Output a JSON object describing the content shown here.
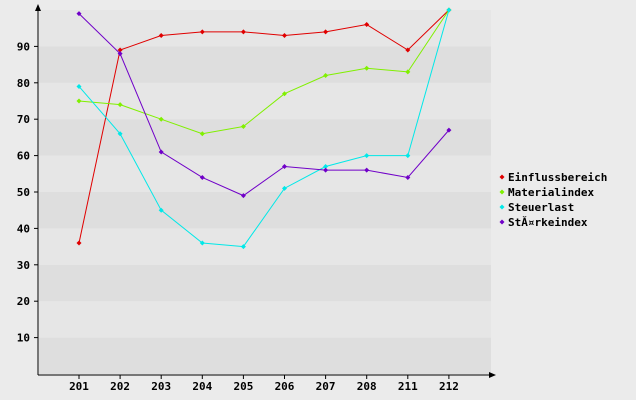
{
  "chart_data": {
    "type": "line",
    "title": "",
    "xlabel": "",
    "ylabel": "",
    "categories": [
      "201",
      "202",
      "203",
      "204",
      "205",
      "206",
      "207",
      "208",
      "211",
      "212"
    ],
    "ylim": [
      0,
      100
    ],
    "yticks": [
      10,
      20,
      30,
      40,
      50,
      60,
      70,
      80,
      90
    ],
    "grid": "horizontal alternating bands",
    "legend_position": "right",
    "series": [
      {
        "name": "Einflussbereich",
        "color": "#e00000",
        "values": [
          36,
          89,
          93,
          94,
          94,
          93,
          94,
          96,
          89,
          100
        ]
      },
      {
        "name": "Materialindex",
        "color": "#80f000",
        "values": [
          75,
          74,
          70,
          66,
          68,
          77,
          82,
          84,
          83,
          100
        ]
      },
      {
        "name": "Steuerlast",
        "color": "#00e8e8",
        "values": [
          79,
          66,
          45,
          36,
          35,
          51,
          57,
          60,
          60,
          100
        ]
      },
      {
        "name": "StĂ¤rkeindex",
        "color": "#7000c8",
        "values": [
          99,
          88,
          61,
          54,
          49,
          57,
          56,
          56,
          54,
          67
        ]
      }
    ]
  }
}
